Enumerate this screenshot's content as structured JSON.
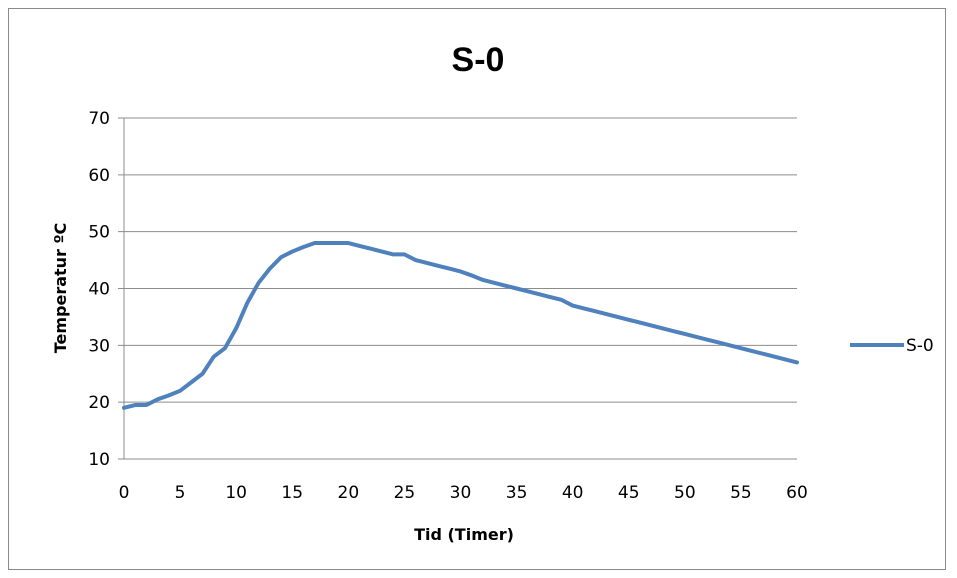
{
  "chart_data": {
    "type": "line",
    "title": "S-0",
    "xlabel": "Tid (Timer)",
    "ylabel": "Temperatur ºC",
    "xlim": [
      0,
      60
    ],
    "ylim": [
      10,
      70
    ],
    "x_ticks": [
      "0",
      "5",
      "10",
      "15",
      "20",
      "25",
      "30",
      "35",
      "40",
      "45",
      "50",
      "55",
      "60"
    ],
    "y_ticks": [
      "10",
      "20",
      "30",
      "40",
      "50",
      "60",
      "70"
    ],
    "grid": "horizontal",
    "legend_position": "right",
    "series": [
      {
        "name": "S-0",
        "color": "#4f81bd",
        "x": [
          0,
          1,
          2,
          3,
          4,
          5,
          6,
          7,
          8,
          9,
          10,
          11,
          12,
          13,
          14,
          15,
          16,
          17,
          18,
          19,
          20,
          21,
          22,
          23,
          24,
          25,
          26,
          27,
          28,
          29,
          30,
          31,
          32,
          33,
          34,
          35,
          36,
          37,
          38,
          39,
          40,
          41,
          42,
          43,
          44,
          45,
          46,
          47,
          48,
          49,
          50,
          51,
          52,
          53,
          54,
          55,
          56,
          57,
          58,
          59,
          60
        ],
        "y": [
          19,
          19.5,
          19.5,
          20.5,
          21.2,
          22,
          23.5,
          25,
          28,
          29.5,
          33,
          37.5,
          41,
          43.5,
          45.5,
          46.5,
          47.3,
          48,
          48,
          48,
          48,
          47.5,
          47,
          46.5,
          46,
          46,
          45,
          44.5,
          44,
          43.5,
          43,
          42.3,
          41.5,
          41,
          40.5,
          40,
          39.5,
          39,
          38.5,
          38,
          37,
          36.5,
          36,
          35.5,
          35,
          34.5,
          34,
          33.5,
          33,
          32.5,
          32,
          31.5,
          31,
          30.5,
          30,
          29.5,
          29,
          28.5,
          28,
          27.5,
          27
        ]
      }
    ]
  }
}
